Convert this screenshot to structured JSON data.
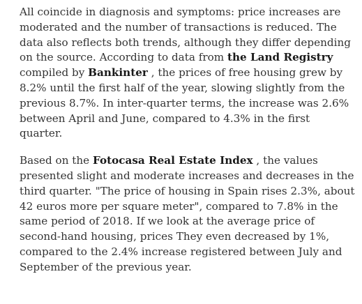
{
  "article": {
    "paragraphs": [
      {
        "text_1": "All coincide in diagnosis and symptoms: price increases are moderated and the number of transactions is reduced. The data also reflects both trends, although they differ depending on the source. According to data from ",
        "bold_1": "the Land Registry",
        "text_2": " compiled by ",
        "bold_2": "Bankinter",
        "text_3": " , the prices of free housing grew by 8.2% until the first half of the year, slowing slightly from the previous 8.7%. In inter-quarter terms, the increase was 2.6% between April and June, compared to 4.3% in the first quarter."
      },
      {
        "text_1": "Based on the ",
        "bold_1": "Fotocasa Real Estate Index",
        "text_2": " , the values presented slight and moderate increases and decreases in the third quarter. \"The price of housing in Spain rises 2.3%, about 42 euros more per square meter\", compared to 7.8% in the same period of 2018. If we look at the average price of second-hand housing, prices They even decreased by 1%, compared to the 2.4% increase registered between July and September of the previous year."
      }
    ]
  }
}
